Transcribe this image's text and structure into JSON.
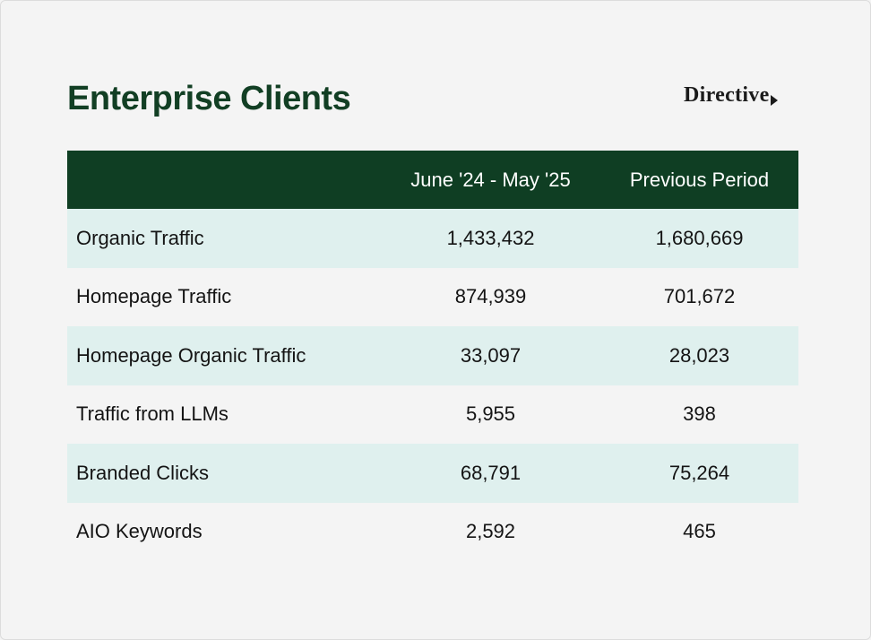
{
  "title": "Enterprise Clients",
  "logo": {
    "text": "Directive",
    "mark_icon": "triangle-arrow-icon"
  },
  "colors": {
    "header_bg": "#0f3e23",
    "title": "#123f24",
    "row_shaded": "#dff0ee",
    "background": "#f4f4f4"
  },
  "table": {
    "columns": [
      "",
      "June '24 - May '25",
      "Previous Period"
    ],
    "rows": [
      {
        "label": "Organic Traffic",
        "current": "1,433,432",
        "previous": "1,680,669"
      },
      {
        "label": "Homepage Traffic",
        "current": "874,939",
        "previous": "701,672"
      },
      {
        "label": "Homepage Organic Traffic",
        "current": "33,097",
        "previous": "28,023"
      },
      {
        "label": "Traffic from LLMs",
        "current": "5,955",
        "previous": "398"
      },
      {
        "label": "Branded Clicks",
        "current": "68,791",
        "previous": "75,264"
      },
      {
        "label": "AIO Keywords",
        "current": "2,592",
        "previous": "465"
      }
    ]
  }
}
